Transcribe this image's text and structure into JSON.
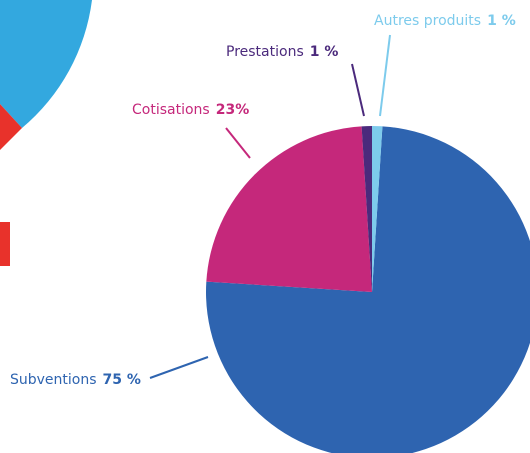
{
  "chart_data": {
    "type": "pie",
    "categories": [
      "Subventions",
      "Cotisations",
      "Prestations",
      "Autres produits"
    ],
    "values": [
      75,
      23,
      1,
      1
    ],
    "value_labels": [
      "75 %",
      "23%",
      "1 %",
      "1 %"
    ],
    "colors": [
      "#2e64b0",
      "#c5287b",
      "#4b2a7c",
      "#7dcbec"
    ]
  }
}
